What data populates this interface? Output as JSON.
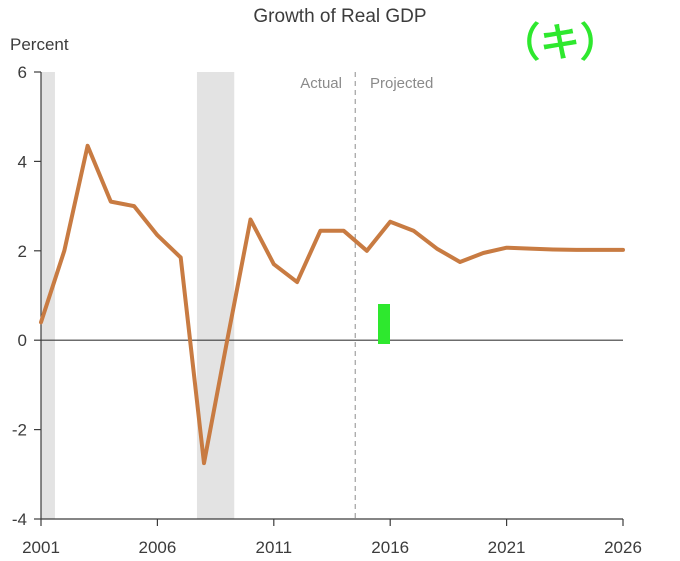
{
  "chart_data": {
    "type": "line",
    "title": "Growth of Real GDP",
    "ylabel": "Percent",
    "xlabel": "",
    "xlim": [
      2001,
      2026
    ],
    "ylim": [
      -4,
      6
    ],
    "x_ticks": [
      2001,
      2006,
      2011,
      2016,
      2021,
      2026
    ],
    "y_ticks": [
      6,
      4,
      2,
      0,
      -2,
      -4
    ],
    "phase_labels": {
      "actual": "Actual",
      "projected": "Projected"
    },
    "divider_x": 2014.5,
    "recessions": [
      [
        2001,
        2001.6
      ],
      [
        2007.7,
        2009.3
      ]
    ],
    "series": [
      {
        "name": "Growth of Real GDP",
        "color": "#c87b42",
        "x": [
          2001,
          2002,
          2003,
          2004,
          2005,
          2006,
          2007,
          2008,
          2009,
          2010,
          2011,
          2012,
          2013,
          2014,
          2015,
          2016,
          2017,
          2018,
          2019,
          2020,
          2021,
          2022,
          2023,
          2024,
          2025,
          2026
        ],
        "values": [
          0.4,
          2.0,
          4.35,
          3.1,
          3.0,
          2.35,
          1.85,
          -2.75,
          0.0,
          2.7,
          1.7,
          1.3,
          2.45,
          2.45,
          2.0,
          2.65,
          2.45,
          2.05,
          1.75,
          1.95,
          2.07,
          2.05,
          2.03,
          2.02,
          2.02,
          2.02
        ]
      }
    ]
  },
  "annotation": {
    "label": "（キ）",
    "color": "#2ee82e"
  }
}
